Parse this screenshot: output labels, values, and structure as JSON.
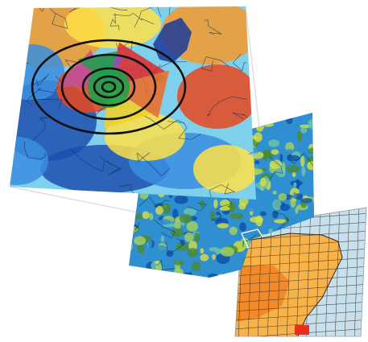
{
  "panels": [
    {
      "id": "regional-map",
      "palette": [
        "#1e4fb0",
        "#3a8ee0",
        "#7fd0ec",
        "#ffe048",
        "#f59a2c",
        "#e8481c"
      ]
    },
    {
      "id": "terrain-map",
      "palette": [
        "#0f4fa8",
        "#2f8fd0",
        "#6ec6a8",
        "#a6d25a",
        "#d9e040",
        "#4a8a30"
      ]
    },
    {
      "id": "grid-map",
      "palette": [
        "#f7b34a",
        "#f08a2a",
        "#e8601e",
        "#c7e0ee",
        "#7bb8d8"
      ]
    }
  ],
  "overlay": {
    "ring_color": "#111111",
    "sector_colors": [
      "#e0282a",
      "#1fa04a",
      "#c04fa0",
      "#f4d21e",
      "#8f4fc0",
      "#f06a22"
    ]
  },
  "connector_color": "#d8d8d8"
}
